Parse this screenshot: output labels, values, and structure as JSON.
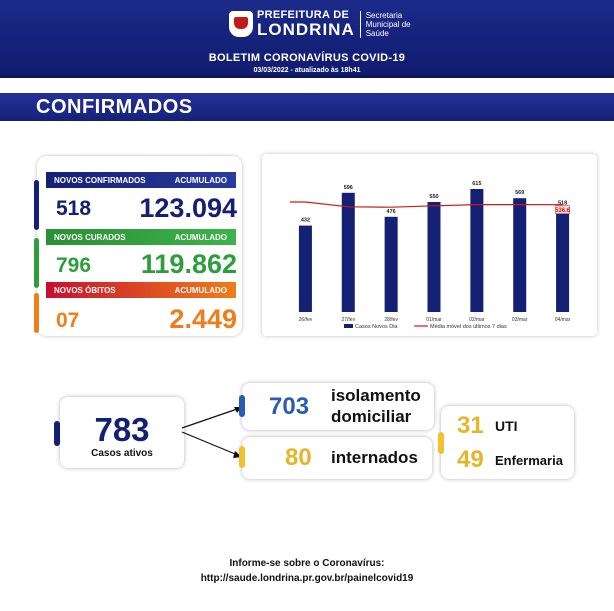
{
  "header": {
    "pref_top": "PREFEITURA DE",
    "pref_city": "LONDRINA",
    "secretaria": [
      "Secretaria",
      "Municipal de",
      "Saúde"
    ],
    "title": "BOLETIM CORONAVÍRUS COVID-19",
    "date": "03/03/2022 - atualizado às 18h41"
  },
  "section": {
    "title": "CONFIRMADOS"
  },
  "summary": {
    "novos_confirmados": {
      "label": "NOVOS CONFIRMADOS",
      "acc_label": "ACUMULADO",
      "value": "518",
      "acc_value": "123.094"
    },
    "novos_curados": {
      "label": "NOVOS CURADOS",
      "acc_label": "ACUMULADO",
      "value": "796",
      "acc_value": "119.862"
    },
    "novos_obitos": {
      "label": "NOVOS ÓBITOS",
      "acc_label": "ACUMULADO",
      "value": "07",
      "acc_value": "2.449"
    }
  },
  "colors": {
    "navy": "#142073",
    "green": "#2e9e3c",
    "orange": "#f07d1a",
    "red": "#c8102e",
    "yellow": "#f2c12e",
    "blue_pill": "#2a5bb5"
  },
  "chart_data": {
    "type": "bar",
    "categories": [
      "26/fev",
      "27/fev",
      "28/fev",
      "01/mar",
      "02/mar",
      "03/mar",
      "04/mar"
    ],
    "series": [
      {
        "name": "Casos Novos Dia",
        "type": "bar",
        "values": [
          432,
          596,
          476,
          550,
          615,
          569,
          518
        ]
      },
      {
        "name": "Média móvel dos últimos 7 dias",
        "type": "line",
        "values": [
          550,
          526,
          524,
          531,
          537,
          537,
          536.6
        ]
      }
    ],
    "data_labels": [
      "432",
      "596",
      "476",
      "550",
      "615",
      "569",
      "518"
    ],
    "highlight_label": "536.6",
    "ylim": [
      0,
      650
    ],
    "legend_position": "bottom"
  },
  "status": {
    "casos_ativos": {
      "value": "783",
      "label": "Casos ativos"
    },
    "isolamento": {
      "value": "703",
      "label_line1": "isolamento",
      "label_line2": "domiciliar"
    },
    "internados": {
      "value": "80",
      "label": "internados"
    },
    "uti": {
      "value": "31",
      "label": "UTI"
    },
    "enfermaria": {
      "value": "49",
      "label": "Enfermaria"
    }
  },
  "footer": {
    "line1": "Informe-se sobre o Coronavírus:",
    "line2": "http://saude.londrina.pr.gov.br/painelcovid19"
  }
}
